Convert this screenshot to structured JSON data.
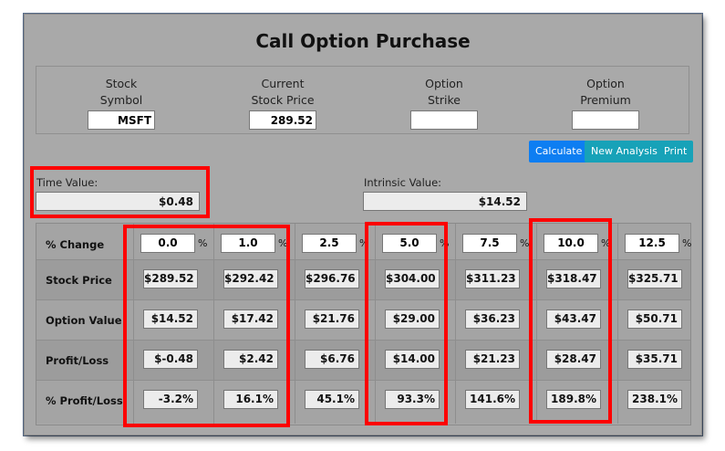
{
  "title": "Call Option Purchase",
  "fields": [
    {
      "label1": "Stock",
      "label2": "Symbol",
      "value": "MSFT"
    },
    {
      "label1": "Current",
      "label2": "Stock Price",
      "value": "289.52"
    },
    {
      "label1": "Option",
      "label2": "Strike",
      "value": ""
    },
    {
      "label1": "Option",
      "label2": "Premium",
      "value": ""
    }
  ],
  "buttons": {
    "calculate": "Calculate",
    "new_analysis": "New Analysis",
    "print": "Print"
  },
  "colors": {
    "calculate": "#0d7ef2",
    "new_analysis": "#17a2b8",
    "print": "#17a2b8",
    "highlight": "#ff0000"
  },
  "time_value": {
    "label": "Time Value:",
    "value": "$0.48"
  },
  "intrinsic_value": {
    "label": "Intrinsic Value:",
    "value": "$14.52"
  },
  "row_labels": {
    "pct_change": "% Change",
    "stock_price": "Stock Price",
    "option_value": "Option Value",
    "profit_loss": "Profit/Loss",
    "pct_profit_loss": "% Profit/Loss"
  },
  "pct_symbol": "%",
  "columns": [
    {
      "pct_change": "0.0",
      "stock_price": "$289.52",
      "option_value": "$14.52",
      "profit_loss": "$-0.48",
      "pct_profit_loss": "-3.2%"
    },
    {
      "pct_change": "1.0",
      "stock_price": "$292.42",
      "option_value": "$17.42",
      "profit_loss": "$2.42",
      "pct_profit_loss": "16.1%"
    },
    {
      "pct_change": "2.5",
      "stock_price": "$296.76",
      "option_value": "$21.76",
      "profit_loss": "$6.76",
      "pct_profit_loss": "45.1%"
    },
    {
      "pct_change": "5.0",
      "stock_price": "$304.00",
      "option_value": "$29.00",
      "profit_loss": "$14.00",
      "pct_profit_loss": "93.3%"
    },
    {
      "pct_change": "7.5",
      "stock_price": "$311.23",
      "option_value": "$36.23",
      "profit_loss": "$21.23",
      "pct_profit_loss": "141.6%"
    },
    {
      "pct_change": "10.0",
      "stock_price": "$318.47",
      "option_value": "$43.47",
      "profit_loss": "$28.47",
      "pct_profit_loss": "189.8%"
    },
    {
      "pct_change": "12.5",
      "stock_price": "$325.71",
      "option_value": "$50.71",
      "profit_loss": "$35.71",
      "pct_profit_loss": "238.1%"
    }
  ]
}
